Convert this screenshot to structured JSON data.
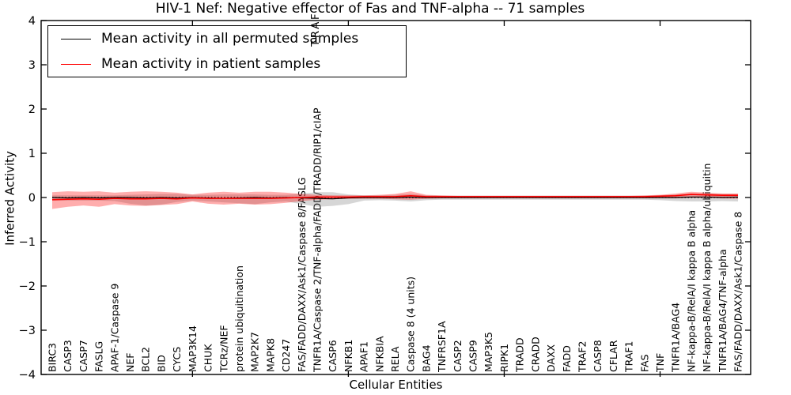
{
  "figure": {
    "title": "HIV-1 Nef: Negative effector of Fas and TNF-alpha -- 71 samples",
    "xlabel": "Cellular Entities",
    "ylabel": "Inferred Activity",
    "overflow_fragment": "TRAF",
    "legend": [
      {
        "label": "Mean activity in all permuted samples",
        "color": "#000000"
      },
      {
        "label": "Mean activity in patient samples",
        "color": "#ff0000"
      }
    ]
  },
  "chart_data": {
    "type": "line",
    "title": "HIV-1 Nef: Negative effector of Fas and TNF-alpha -- 71 samples",
    "xlabel": "Cellular Entities",
    "ylabel": "Inferred Activity",
    "ylim": [
      -4,
      4
    ],
    "ytick_labels": [
      "4",
      "3",
      "2",
      "1",
      "0",
      "−1",
      "−2",
      "−3",
      "−4"
    ],
    "ytick_values": [
      4,
      3,
      2,
      1,
      0,
      -1,
      -2,
      -3,
      -4
    ],
    "xtick_indices": [
      9,
      19,
      29,
      39
    ],
    "grid": false,
    "legend_position": "upper left",
    "zero_line": {
      "value": 0,
      "style": "dotted",
      "color": "#000000"
    },
    "categories": [
      "BIRC3",
      "CASP3",
      "CASP7",
      "FASLG",
      "APAF-1/Caspase 9",
      "NEF",
      "BCL2",
      "BID",
      "CYCS",
      "MAP3K14",
      "CHUK",
      "TCRz/NEF",
      "protein ubiquitination",
      "MAP2K7",
      "MAPK8",
      "CD247",
      "FAS/FADD/DAXX/Ask1/Caspase 8/FASLG",
      "TNFR1A/Caspase 2/TNF-alpha/FADD/TRADD/RIP1/cIAP",
      "CASP6",
      "NFKB1",
      "APAF1",
      "NFKBIA",
      "RELA",
      "Caspase 8 (4 units)",
      "BAG4",
      "TNFRSF1A",
      "CASP2",
      "CASP9",
      "MAP3K5",
      "RIPK1",
      "TRADD",
      "CRADD",
      "DAXX",
      "FADD",
      "TRAF2",
      "CASP8",
      "CFLAR",
      "TRAF1",
      "FAS",
      "TNF",
      "TNFR1A/BAG4",
      "NF-kappa-B/RelA/I kappa B alpha",
      "NF-kappa-B/RelA/I kappa B alpha/ubiquitin",
      "TNFR1A/BAG4/TNF-alpha",
      "FAS/FADD/DAXX/Ask1/Caspase 8"
    ],
    "series": [
      {
        "name": "Mean activity in all permuted samples",
        "color": "#000000",
        "band_color": "rgba(120,120,120,0.30)",
        "values": [
          0,
          -0.01,
          0,
          -0.01,
          0,
          0,
          -0.01,
          0,
          -0.01,
          0,
          -0.01,
          -0.02,
          -0.01,
          0,
          -0.01,
          0,
          -0.01,
          -0.02,
          -0.03,
          -0.01,
          0,
          0,
          0,
          0.01,
          0,
          0,
          0,
          0,
          0,
          0,
          0,
          0,
          0,
          0,
          0,
          0,
          0,
          0,
          0,
          0,
          0,
          0.01,
          0.01,
          0,
          0.01
        ],
        "band_upper": [
          0.05,
          0.05,
          0.05,
          0.05,
          0.05,
          0.06,
          0.07,
          0.08,
          0.08,
          0.06,
          0.06,
          0.07,
          0.07,
          0.07,
          0.06,
          0.06,
          0.09,
          0.12,
          0.12,
          0.07,
          0.05,
          0.05,
          0.06,
          0.08,
          0.05,
          0.04,
          0.04,
          0.04,
          0.04,
          0.04,
          0.04,
          0.04,
          0.04,
          0.04,
          0.04,
          0.04,
          0.04,
          0.04,
          0.04,
          0.05,
          0.07,
          0.09,
          0.09,
          0.08,
          0.08
        ],
        "band_lower": [
          -0.07,
          -0.07,
          -0.07,
          -0.07,
          -0.08,
          -0.14,
          -0.18,
          -0.16,
          -0.1,
          -0.07,
          -0.09,
          -0.11,
          -0.13,
          -0.15,
          -0.11,
          -0.09,
          -0.15,
          -0.21,
          -0.19,
          -0.15,
          -0.07,
          -0.06,
          -0.07,
          -0.09,
          -0.06,
          -0.05,
          -0.05,
          -0.05,
          -0.05,
          -0.05,
          -0.05,
          -0.05,
          -0.05,
          -0.05,
          -0.05,
          -0.05,
          -0.05,
          -0.05,
          -0.05,
          -0.06,
          -0.08,
          -0.09,
          -0.09,
          -0.08,
          -0.09
        ]
      },
      {
        "name": "Mean activity in patient samples",
        "color": "#ff0000",
        "band_color": "rgba(255,0,0,0.32)",
        "values": [
          -0.05,
          -0.04,
          -0.03,
          -0.04,
          -0.02,
          -0.03,
          -0.03,
          -0.02,
          -0.03,
          -0.01,
          -0.02,
          -0.02,
          -0.02,
          -0.02,
          -0.02,
          -0.01,
          0,
          0.01,
          0.01,
          0.01,
          0.02,
          0.02,
          0.02,
          0.04,
          0.02,
          0.02,
          0.02,
          0.02,
          0.02,
          0.02,
          0.02,
          0.02,
          0.02,
          0.02,
          0.02,
          0.02,
          0.02,
          0.02,
          0.02,
          0.03,
          0.04,
          0.07,
          0.06,
          0.05,
          0.05
        ],
        "band_upper": [
          0.12,
          0.14,
          0.13,
          0.14,
          0.11,
          0.13,
          0.14,
          0.13,
          0.11,
          0.07,
          0.11,
          0.13,
          0.11,
          0.13,
          0.13,
          0.11,
          0.08,
          0.06,
          0.05,
          0.05,
          0.05,
          0.06,
          0.08,
          0.14,
          0.06,
          0.05,
          0.04,
          0.04,
          0.04,
          0.04,
          0.04,
          0.04,
          0.04,
          0.04,
          0.04,
          0.04,
          0.04,
          0.04,
          0.05,
          0.06,
          0.09,
          0.13,
          0.11,
          0.09,
          0.09
        ],
        "band_lower": [
          -0.26,
          -0.21,
          -0.18,
          -0.21,
          -0.15,
          -0.18,
          -0.19,
          -0.17,
          -0.15,
          -0.09,
          -0.14,
          -0.16,
          -0.14,
          -0.16,
          -0.15,
          -0.12,
          -0.08,
          -0.05,
          -0.04,
          -0.03,
          -0.03,
          -0.03,
          -0.04,
          -0.05,
          -0.03,
          -0.02,
          -0.02,
          -0.02,
          -0.02,
          -0.02,
          -0.02,
          -0.02,
          -0.02,
          -0.02,
          -0.02,
          -0.02,
          -0.02,
          -0.02,
          -0.02,
          -0.02,
          -0.02,
          -0.01,
          -0.01,
          -0.02,
          -0.03
        ]
      }
    ]
  }
}
